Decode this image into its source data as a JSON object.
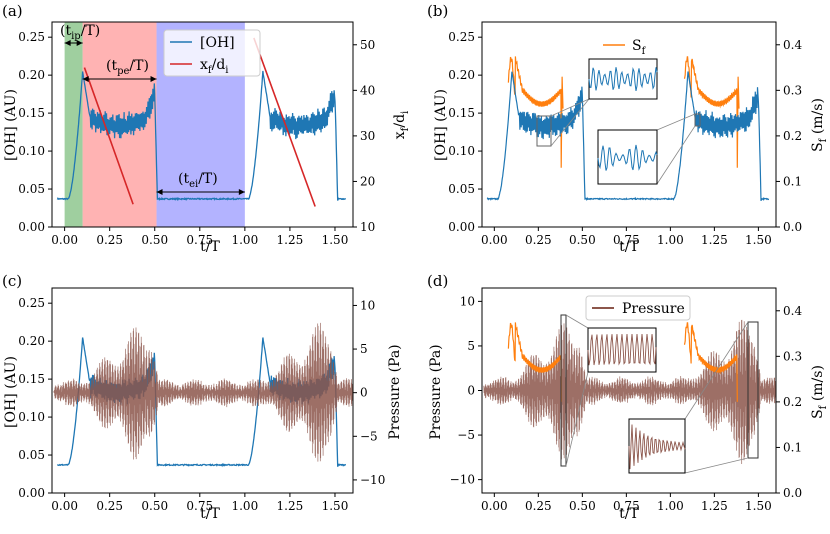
{
  "colors": {
    "oh": "#1f77b4",
    "xf": "#d62728",
    "sf": "#ff7f0e",
    "pressure": "#8c564b",
    "phase_ip": "#7fbf7f",
    "phase_pe": "#ff9999",
    "phase_ei": "#9999ff"
  },
  "chart_data": [
    {
      "panel": "(a)",
      "type": "line",
      "xlabel": "t/T",
      "ylabel": "[OH] (AU)",
      "ylabel_right": "x_f/d_i",
      "xlim": [
        -0.07,
        1.6
      ],
      "ylim": [
        0.0,
        0.27
      ],
      "ylim_right": [
        10,
        55
      ],
      "xticks": [
        "0.00",
        "0.25",
        "0.50",
        "0.75",
        "1.00",
        "1.25",
        "1.50"
      ],
      "yticks": [
        "0.00",
        "0.05",
        "0.10",
        "0.15",
        "0.20",
        "0.25"
      ],
      "yticks_right": [
        "10",
        "20",
        "30",
        "40",
        "50"
      ],
      "legend": [
        "[OH]",
        "x_f/d_i"
      ],
      "phases": [
        {
          "name": "ignition phase",
          "x0": 0.0,
          "x1": 0.1
        },
        {
          "name": "propagation phase",
          "x0": 0.1,
          "x1": 0.51
        },
        {
          "name": "extinction phase",
          "x0": 0.51,
          "x1": 1.0
        }
      ],
      "annotations": {
        "tip": {
          "main": "(t",
          "sub": "ip",
          "tail": "/T)"
        },
        "tpe": {
          "main": "(t",
          "sub": "pe",
          "tail": "/T)"
        },
        "tei": {
          "main": "(t",
          "sub": "ei",
          "tail": "/T)"
        }
      },
      "series": [
        {
          "name": "x_f/d_i",
          "segments": [
            {
              "x": [
                0.11,
                0.38
              ],
              "y": [
                45.0,
                15.0
              ]
            },
            {
              "x": [
                1.05,
                1.39
              ],
              "y": [
                51.5,
                14.5
              ]
            }
          ]
        }
      ]
    },
    {
      "panel": "(b)",
      "type": "line",
      "xlabel": "t/T",
      "ylabel": "[OH] (AU)",
      "ylabel_right": "S_f (m/s)",
      "xlim": [
        -0.07,
        1.6
      ],
      "ylim": [
        0.0,
        0.27
      ],
      "ylim_right": [
        0.0,
        0.45
      ],
      "xticks": [
        "0.00",
        "0.25",
        "0.50",
        "0.75",
        "1.00",
        "1.25",
        "1.50"
      ],
      "yticks": [
        "0.00",
        "0.05",
        "0.10",
        "0.15",
        "0.20",
        "0.25"
      ],
      "yticks_right": [
        "0.0",
        "0.1",
        "0.2",
        "0.3",
        "0.4"
      ],
      "legend": [
        "S_f"
      ]
    },
    {
      "panel": "(c)",
      "type": "line",
      "xlabel": "t/T",
      "ylabel": "[OH] (AU)",
      "ylabel_right": "Pressure (Pa)",
      "xlim": [
        -0.07,
        1.6
      ],
      "ylim": [
        0.0,
        0.27
      ],
      "ylim_right": [
        -11.5,
        12
      ],
      "xticks": [
        "0.00",
        "0.25",
        "0.50",
        "0.75",
        "1.00",
        "1.25",
        "1.50"
      ],
      "yticks": [
        "0.00",
        "0.05",
        "0.10",
        "0.15",
        "0.20",
        "0.25"
      ],
      "yticks_right": [
        "−10",
        "−5",
        "0",
        "5",
        "10"
      ]
    },
    {
      "panel": "(d)",
      "type": "line",
      "xlabel": "t/T",
      "ylabel": "Pressure (Pa)",
      "ylabel_right": "S_f (m/s)",
      "xlim": [
        -0.07,
        1.6
      ],
      "ylim": [
        -11.5,
        11.5
      ],
      "ylim_right": [
        0.0,
        0.45
      ],
      "xticks": [
        "0.00",
        "0.25",
        "0.50",
        "0.75",
        "1.00",
        "1.25",
        "1.50"
      ],
      "yticks": [
        "−10",
        "−5",
        "0",
        "5",
        "10"
      ],
      "yticks_right": [
        "0.0",
        "0.1",
        "0.2",
        "0.3",
        "0.4"
      ],
      "legend": [
        "Pressure"
      ]
    }
  ],
  "labels": {
    "panel_a": "(a)",
    "panel_b": "(b)",
    "panel_c": "(c)",
    "panel_d": "(d)",
    "oh_axis": "[OH] (AU)",
    "t_axis": "t/T",
    "pressure_axis": "Pressure (Pa)",
    "legend_oh": "[OH]",
    "legend_pressure": "Pressure",
    "xf_main": "x",
    "xf_sub1": "f",
    "xf_mid": "/d",
    "xf_sub2": "i",
    "sf_main": "S",
    "sf_sub": "f",
    "sf_unit": " (m/s)"
  }
}
